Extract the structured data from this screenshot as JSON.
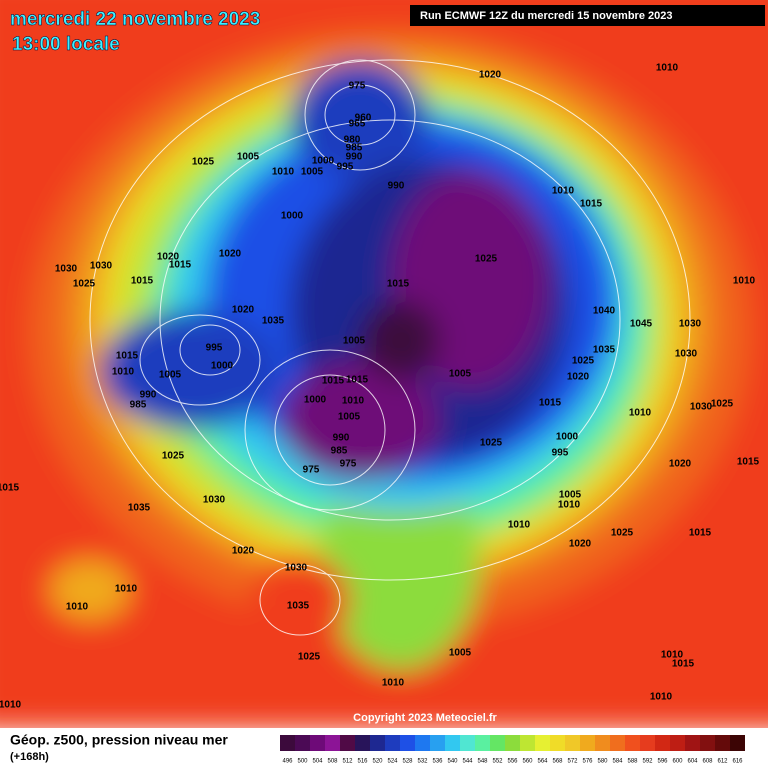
{
  "header": {
    "date": "mercredi 22 novembre 2023",
    "local_time": "13:00 locale",
    "run": "Run ECMWF 12Z du mercredi 15 novembre 2023"
  },
  "footer": {
    "field": "Géop. z500, pression niveau mer",
    "lead": "(+168h)",
    "copyright": "Copyright 2023 Meteociel.fr"
  },
  "colorbar": {
    "values": [
      496,
      500,
      504,
      508,
      512,
      516,
      520,
      524,
      528,
      532,
      536,
      540,
      544,
      548,
      552,
      556,
      560,
      564,
      568,
      572,
      576,
      580,
      584,
      588,
      592,
      596,
      600,
      604,
      608,
      612,
      616
    ],
    "colors": [
      "#3c0a3c",
      "#4b0a55",
      "#6e0a78",
      "#8c1496",
      "#500a46",
      "#28145a",
      "#1e2891",
      "#1e3cbe",
      "#1e50e6",
      "#1e78f0",
      "#28a0f0",
      "#32c8f0",
      "#50e6d2",
      "#5af0a0",
      "#64e664",
      "#8cdc3c",
      "#bee632",
      "#e6f032",
      "#f0dc28",
      "#f0c828",
      "#f0aa1e",
      "#f08c1e",
      "#f06e1e",
      "#f0501e",
      "#e63c1e",
      "#d22814",
      "#be1e14",
      "#a01414",
      "#821010",
      "#640a0a",
      "#3c0505"
    ]
  },
  "isobar_labels": [
    975,
    960,
    965,
    980,
    985,
    990,
    995,
    1000,
    1005,
    1005,
    1010,
    1025,
    990,
    1020,
    1010,
    1010,
    1015,
    1025,
    1015,
    1000,
    1020,
    1020,
    1015,
    1030,
    1030,
    1025,
    1015,
    1020,
    1035,
    995,
    1000,
    1005,
    1015,
    1010,
    990,
    985,
    1005,
    1015,
    1015,
    1000,
    1010,
    1005,
    1005,
    990,
    985,
    975,
    975,
    1025,
    1030,
    1035,
    1015,
    1025,
    1000,
    995,
    1005,
    1010,
    1010,
    1020,
    1025,
    1040,
    1045,
    1035,
    1025,
    1020,
    1030,
    1030,
    1010,
    1030,
    1025,
    1010,
    1020,
    1015,
    1015,
    1020,
    1030,
    1035,
    1010,
    1010,
    1025,
    1005,
    1010,
    1010,
    1015,
    1010,
    1010,
    1015
  ]
}
